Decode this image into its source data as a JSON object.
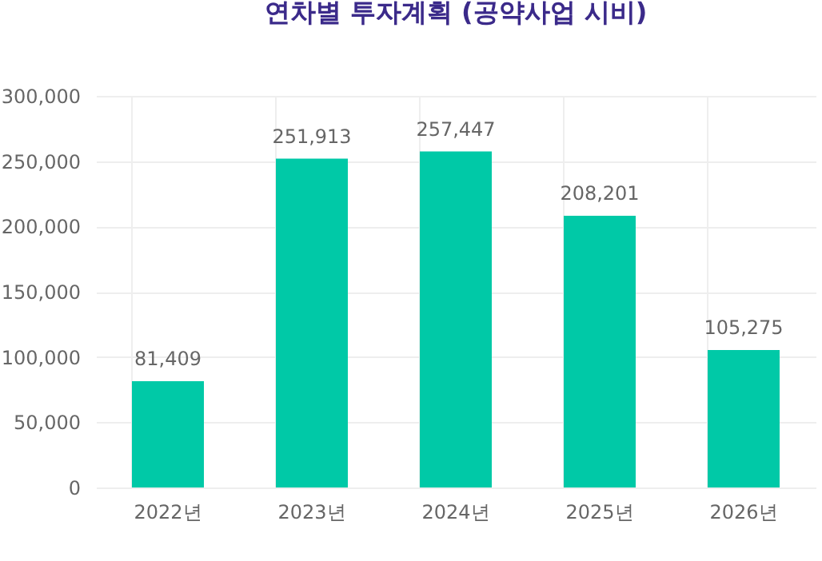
{
  "chart_data": {
    "type": "bar",
    "title": "연차별 투자계획 (공약사업 시비)",
    "categories": [
      "2022년",
      "2023년",
      "2024년",
      "2025년",
      "2026년"
    ],
    "values": [
      81409,
      251913,
      257447,
      208201,
      105275
    ],
    "value_labels": [
      "81,409",
      "251,913",
      "257,447",
      "208,201",
      "105,275"
    ],
    "color": "#00c9a7",
    "ylim": [
      0,
      300000
    ],
    "yticks": [
      0,
      {
        "value": 50000,
        "label": "50,000"
      },
      {
        "value": 100000,
        "label": "100,000"
      },
      {
        "value": 150000,
        "label": "150,000"
      },
      {
        "value": 200000,
        "label": "200,000"
      },
      {
        "value": 250000,
        "label": "250,000"
      },
      {
        "value": 300000,
        "label": "300,000"
      }
    ],
    "grid": true
  }
}
